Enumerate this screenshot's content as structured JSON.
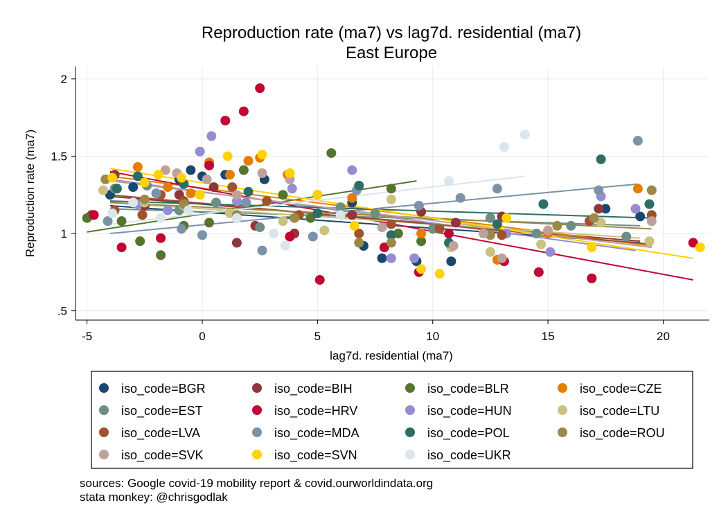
{
  "chart_data": {
    "type": "scatter",
    "title": "Reproduction rate (ma7) vs lag7d. residential (ma7)",
    "subtitle": "East Europe",
    "xlabel": "lag7d. residential (ma7)",
    "ylabel": "Reproduction rate (ma7)",
    "xlim": [
      -5.5,
      22
    ],
    "ylim": [
      0.44,
      2.08
    ],
    "xticks": [
      -5,
      0,
      5,
      10,
      15,
      20
    ],
    "xtick_labels": [
      "-5",
      "0",
      "5",
      "10",
      "15",
      "20"
    ],
    "yticks": [
      0.5,
      1,
      1.5,
      2
    ],
    "ytick_labels": [
      ".5",
      "1",
      "1.5",
      "2"
    ],
    "grid": true,
    "legend_position": "bottom",
    "series": [
      {
        "name": "iso_code=BGR",
        "color": "#1a476f",
        "points": [
          [
            -4,
            1.25
          ],
          [
            -3,
            1.3
          ],
          [
            -1,
            1.35
          ],
          [
            -0.5,
            1.41
          ],
          [
            0,
            1.37
          ],
          [
            1,
            1.38
          ],
          [
            2.7,
            1.35
          ],
          [
            5,
            1.25
          ],
          [
            6.5,
            1.2
          ],
          [
            7,
            0.92
          ],
          [
            7.8,
            0.84
          ],
          [
            9.3,
            0.82
          ],
          [
            10.8,
            0.82
          ],
          [
            12.5,
            1.1
          ],
          [
            17.5,
            1.16
          ],
          [
            19,
            1.11
          ]
        ],
        "fit": [
          [
            -4,
            1.18
          ],
          [
            19,
            0.94
          ]
        ]
      },
      {
        "name": "iso_code=BIH",
        "color": "#90353b",
        "points": [
          [
            -4.8,
            1.12
          ],
          [
            -3.8,
            1.38
          ],
          [
            -2.5,
            1.18
          ],
          [
            -1,
            1.25
          ],
          [
            0.5,
            1.3
          ],
          [
            1.5,
            0.94
          ],
          [
            2.3,
            1.05
          ],
          [
            4,
            1.0
          ],
          [
            6.5,
            1.12
          ],
          [
            9.5,
            1.14
          ],
          [
            11,
            1.07
          ],
          [
            13,
            1.11
          ],
          [
            17.2,
            1.16
          ]
        ],
        "fit": [
          [
            -4,
            1.24
          ],
          [
            19,
            0.95
          ]
        ]
      },
      {
        "name": "iso_code=BLR",
        "color": "#55752f",
        "points": [
          [
            -5,
            1.1
          ],
          [
            -3.5,
            1.08
          ],
          [
            -2.7,
            0.95
          ],
          [
            -1.8,
            0.86
          ],
          [
            -0.8,
            1.05
          ],
          [
            0.3,
            1.07
          ],
          [
            1.8,
            1.41
          ],
          [
            3.5,
            1.25
          ],
          [
            4.7,
            1.1
          ],
          [
            5.6,
            1.52
          ],
          [
            8.2,
            1.29
          ],
          [
            8.5,
            1.0
          ],
          [
            9.5,
            0.95
          ]
        ],
        "fit": [
          [
            -5,
            1.01
          ],
          [
            9.3,
            1.34
          ]
        ]
      },
      {
        "name": "iso_code=CZE",
        "color": "#e37e00",
        "points": [
          [
            -2.8,
            1.43
          ],
          [
            -1.5,
            1.3
          ],
          [
            -0.5,
            1.26
          ],
          [
            0.3,
            1.46
          ],
          [
            1.2,
            1.38
          ],
          [
            2,
            1.47
          ],
          [
            2.5,
            1.49
          ],
          [
            3.7,
            1.38
          ],
          [
            6.5,
            1.23
          ],
          [
            9.5,
            1.0
          ],
          [
            12.8,
            0.83
          ],
          [
            15,
            1.0
          ],
          [
            18.9,
            1.29
          ]
        ],
        "fit": [
          [
            -4,
            1.37
          ],
          [
            19.5,
            0.92
          ]
        ]
      },
      {
        "name": "iso_code=EST",
        "color": "#6e8e84",
        "points": [
          [
            -3.8,
            1.29
          ],
          [
            -2.4,
            1.31
          ],
          [
            -1,
            1.15
          ],
          [
            0.6,
            1.2
          ],
          [
            1.5,
            1.1
          ],
          [
            2.5,
            1.04
          ],
          [
            6,
            1.17
          ],
          [
            7.5,
            1.13
          ],
          [
            10,
            1.03
          ],
          [
            12.5,
            1.1
          ],
          [
            14.5,
            1.0
          ],
          [
            16,
            1.05
          ],
          [
            18.4,
            0.98
          ]
        ],
        "fit": [
          [
            -4,
            1.16
          ],
          [
            19,
            1.05
          ]
        ]
      },
      {
        "name": "iso_code=HRV",
        "color": "#c10534",
        "points": [
          [
            -4.7,
            1.12
          ],
          [
            -3.5,
            0.91
          ],
          [
            -1.8,
            0.97
          ],
          [
            0.3,
            1.44
          ],
          [
            1,
            1.73
          ],
          [
            1.8,
            1.79
          ],
          [
            2.5,
            1.94
          ],
          [
            3.8,
            0.98
          ],
          [
            5.1,
            0.7
          ],
          [
            7.9,
            0.91
          ],
          [
            9.4,
            0.75
          ],
          [
            10.7,
            1.0
          ],
          [
            13.1,
            0.82
          ],
          [
            14.6,
            0.75
          ],
          [
            16.9,
            0.71
          ],
          [
            21.3,
            0.94
          ]
        ],
        "fit": [
          [
            -4,
            1.4
          ],
          [
            21.3,
            0.7
          ]
        ]
      },
      {
        "name": "iso_code=HUN",
        "color": "#938dd2",
        "points": [
          [
            -2.8,
            1.19
          ],
          [
            -1.5,
            1.15
          ],
          [
            -0.1,
            1.53
          ],
          [
            0.4,
            1.63
          ],
          [
            1.5,
            1.21
          ],
          [
            3.9,
            1.29
          ],
          [
            6.5,
            1.41
          ],
          [
            8.2,
            0.84
          ],
          [
            9.2,
            0.84
          ],
          [
            13.2,
            1.0
          ],
          [
            15.1,
            0.88
          ],
          [
            17.3,
            1.24
          ],
          [
            18.8,
            1.16
          ]
        ],
        "fit": [
          [
            -4,
            1.35
          ],
          [
            18.8,
            0.89
          ]
        ]
      },
      {
        "name": "iso_code=LTU",
        "color": "#cac27e",
        "points": [
          [
            -4.3,
            1.28
          ],
          [
            -2.5,
            1.2
          ],
          [
            -0.8,
            1.18
          ],
          [
            1.2,
            1.13
          ],
          [
            3.5,
            1.08
          ],
          [
            5.3,
            1.02
          ],
          [
            8.2,
            1.22
          ],
          [
            10.8,
            0.91
          ],
          [
            12.5,
            0.88
          ],
          [
            14.7,
            0.93
          ],
          [
            17.3,
            1.07
          ],
          [
            19.4,
            0.95
          ]
        ],
        "fit": [
          [
            -4,
            1.2
          ],
          [
            19,
            0.97
          ]
        ]
      },
      {
        "name": "iso_code=LVA",
        "color": "#a0522d",
        "points": [
          [
            -3.8,
            1.15
          ],
          [
            -2.6,
            1.12
          ],
          [
            -1.8,
            1.25
          ],
          [
            -0.8,
            1.21
          ],
          [
            1.3,
            1.3
          ],
          [
            2.8,
            1.21
          ],
          [
            4.2,
            1.12
          ],
          [
            6.8,
            1.0
          ],
          [
            8.2,
            1.06
          ],
          [
            10.3,
            1.03
          ],
          [
            13,
            0.99
          ],
          [
            16.8,
            1.08
          ],
          [
            19.5,
            1.12
          ]
        ],
        "fit": [
          [
            -4,
            1.25
          ],
          [
            19.5,
            0.93
          ]
        ]
      },
      {
        "name": "iso_code=MDA",
        "color": "#7b92a8",
        "points": [
          [
            -4.1,
            1.08
          ],
          [
            -2,
            1.26
          ],
          [
            -0.9,
            1.03
          ],
          [
            0,
            0.99
          ],
          [
            1.9,
            1.2
          ],
          [
            2.6,
            0.89
          ],
          [
            4.8,
            0.98
          ],
          [
            6.7,
            1.28
          ],
          [
            9.4,
            1.18
          ],
          [
            11.2,
            1.23
          ],
          [
            12.8,
            1.29
          ],
          [
            17.2,
            1.28
          ],
          [
            18.9,
            1.6
          ]
        ],
        "fit": [
          [
            -4,
            1.0
          ],
          [
            18.9,
            1.32
          ]
        ]
      },
      {
        "name": "iso_code=POL",
        "color": "#2d6d66",
        "points": [
          [
            -3.7,
            1.29
          ],
          [
            -2.8,
            1.37
          ],
          [
            -0.8,
            1.32
          ],
          [
            2,
            1.27
          ],
          [
            5,
            1.13
          ],
          [
            6.8,
            1.31
          ],
          [
            8.2,
            0.99
          ],
          [
            10.7,
            0.94
          ],
          [
            12.8,
            1.06
          ],
          [
            14.8,
            1.19
          ],
          [
            17.3,
            1.48
          ],
          [
            19.4,
            1.19
          ]
        ],
        "fit": [
          [
            -4,
            1.21
          ],
          [
            19.5,
            1.1
          ]
        ]
      },
      {
        "name": "iso_code=ROU",
        "color": "#9c8847",
        "points": [
          [
            -4.2,
            1.35
          ],
          [
            -2.5,
            1.22
          ],
          [
            -0.8,
            1.19
          ],
          [
            1.5,
            1.12
          ],
          [
            4,
            1.1
          ],
          [
            6.8,
            0.94
          ],
          [
            8.2,
            0.94
          ],
          [
            12.5,
            0.99
          ],
          [
            15.4,
            1.05
          ],
          [
            17,
            1.1
          ],
          [
            19.5,
            1.28
          ]
        ],
        "fit": [
          [
            -4,
            1.2
          ],
          [
            19.5,
            1.03
          ]
        ]
      },
      {
        "name": "iso_code=SVK",
        "color": "#bfa19c",
        "points": [
          [
            -1.6,
            1.41
          ],
          [
            -1.1,
            1.39
          ],
          [
            0.2,
            1.35
          ],
          [
            1.5,
            1.25
          ],
          [
            2.6,
            1.39
          ],
          [
            3.8,
            1.35
          ],
          [
            7.8,
            1.04
          ],
          [
            10.9,
            0.92
          ],
          [
            12.2,
            1.0
          ],
          [
            13,
            0.84
          ],
          [
            15,
            1.02
          ],
          [
            19.5,
            1.08
          ]
        ],
        "fit": [
          [
            -4,
            1.34
          ],
          [
            19.5,
            0.91
          ]
        ]
      },
      {
        "name": "iso_code=SVN",
        "color": "#ffd200",
        "points": [
          [
            -3.9,
            1.36
          ],
          [
            -2.5,
            1.33
          ],
          [
            -1.9,
            1.38
          ],
          [
            -0.9,
            1.36
          ],
          [
            -0.1,
            1.25
          ],
          [
            1.1,
            1.5
          ],
          [
            2.6,
            1.51
          ],
          [
            3.8,
            1.39
          ],
          [
            5,
            1.25
          ],
          [
            6.6,
            1.05
          ],
          [
            9.5,
            0.77
          ],
          [
            10.3,
            0.74
          ],
          [
            13.2,
            1.1
          ],
          [
            16.9,
            0.91
          ],
          [
            21.6,
            0.91
          ]
        ],
        "fit": [
          [
            -4,
            1.42
          ],
          [
            21.3,
            0.84
          ]
        ]
      },
      {
        "name": "iso_code=UKR",
        "color": "#d9e6eb",
        "points": [
          [
            -3.9,
            1.13
          ],
          [
            -3,
            1.2
          ],
          [
            -1.8,
            1.1
          ],
          [
            -0.6,
            1.15
          ],
          [
            1.5,
            1.1
          ],
          [
            3.1,
            1.0
          ],
          [
            3.6,
            0.92
          ],
          [
            6,
            1.12
          ],
          [
            10.7,
            1.34
          ],
          [
            13.1,
            1.56
          ],
          [
            14,
            1.64
          ]
        ],
        "fit": [
          [
            -4,
            1.06
          ],
          [
            14,
            1.37
          ]
        ]
      }
    ]
  },
  "footer": {
    "line1": "sources: Google covid-19 mobility report & covid.ourworldindata.org",
    "line2": "stata monkey: @chrisgodlak"
  }
}
